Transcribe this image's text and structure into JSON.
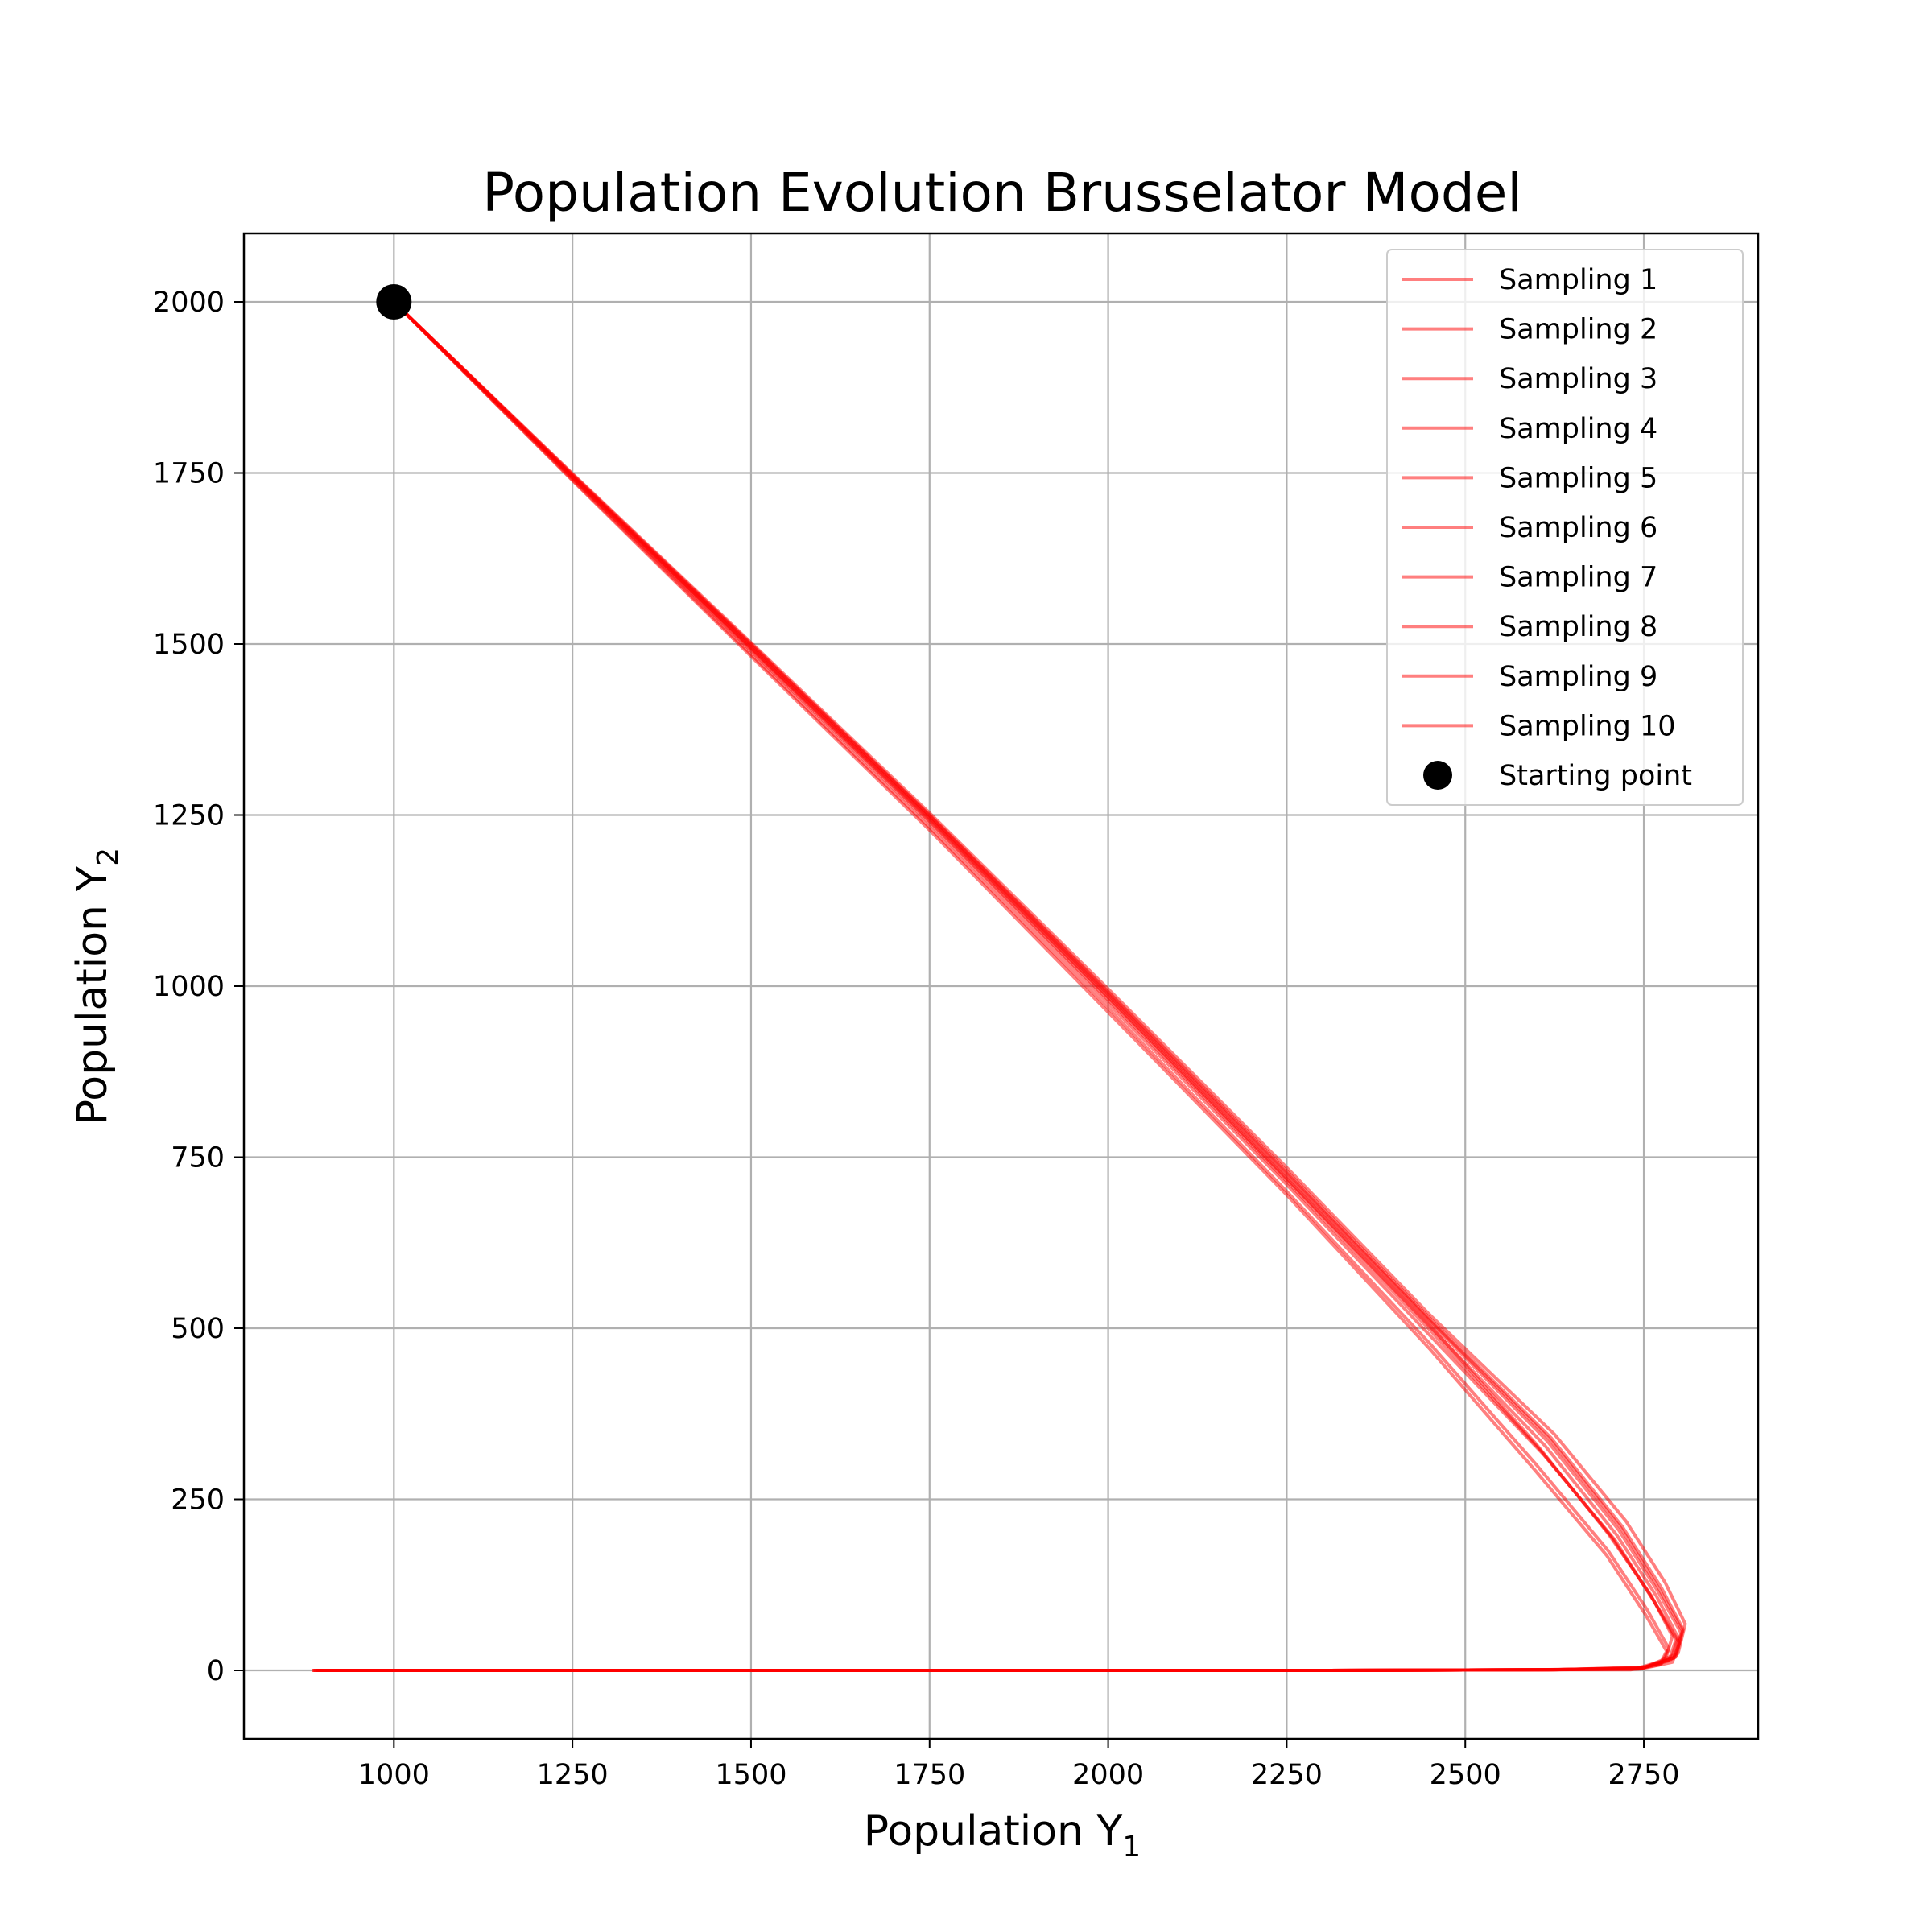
{
  "chart_data": {
    "type": "line",
    "title": "Population Evolution Brusselator Model",
    "xlabel": "Population Y",
    "xlabel_sub": "1",
    "ylabel": "Population Y",
    "ylabel_sub": "2",
    "xlim": [
      790,
      2910
    ],
    "ylim": [
      -100,
      2100
    ],
    "xticks": [
      1000,
      1250,
      1500,
      1750,
      2000,
      2250,
      2500,
      2750
    ],
    "yticks": [
      0,
      250,
      500,
      750,
      1000,
      1250,
      1500,
      1750,
      2000
    ],
    "grid": true,
    "legend_position": "upper right",
    "line_color": "#ff0000",
    "line_alpha": 0.5,
    "start_point": {
      "name": "Starting point",
      "x": 1000,
      "y": 2000,
      "color": "#000000"
    },
    "series": [
      {
        "name": "Sampling 1",
        "x": [
          1000,
          1250,
          1500,
          1750,
          2000,
          2250,
          2450,
          2600,
          2700,
          2760,
          2790,
          2780,
          2740,
          2600,
          2300,
          1900,
          1500,
          1100,
          885
        ],
        "y": [
          2000,
          1745,
          1495,
          1245,
          985,
          720,
          505,
          330,
          200,
          110,
          50,
          15,
          3,
          1,
          0,
          0,
          0,
          0,
          0
        ]
      },
      {
        "name": "Sampling 2",
        "x": [
          1000,
          1250,
          1500,
          1750,
          2000,
          2250,
          2450,
          2610,
          2710,
          2765,
          2800,
          2790,
          2745,
          2610,
          2300,
          1900,
          1500,
          1100,
          890
        ],
        "y": [
          2000,
          1742,
          1490,
          1238,
          975,
          710,
          490,
          315,
          190,
          100,
          40,
          12,
          2,
          1,
          0,
          0,
          0,
          0,
          0
        ]
      },
      {
        "name": "Sampling 3",
        "x": [
          1000,
          1250,
          1500,
          1750,
          2000,
          2250,
          2450,
          2620,
          2720,
          2775,
          2805,
          2795,
          2750,
          2620,
          2300,
          1900,
          1500,
          1100,
          895
        ],
        "y": [
          2000,
          1748,
          1500,
          1250,
          992,
          730,
          515,
          340,
          210,
          120,
          60,
          20,
          4,
          1,
          0,
          0,
          0,
          0,
          0
        ]
      },
      {
        "name": "Sampling 4",
        "x": [
          1000,
          1250,
          1500,
          1750,
          2000,
          2250,
          2450,
          2600,
          2700,
          2755,
          2785,
          2775,
          2735,
          2590,
          2300,
          1900,
          1500,
          1100,
          888
        ],
        "y": [
          2000,
          1740,
          1485,
          1232,
          968,
          700,
          478,
          300,
          175,
          88,
          32,
          10,
          2,
          1,
          0,
          0,
          0,
          0,
          0
        ]
      },
      {
        "name": "Sampling 5",
        "x": [
          1000,
          1250,
          1500,
          1750,
          2000,
          2250,
          2450,
          2615,
          2715,
          2770,
          2802,
          2792,
          2748,
          2615,
          2300,
          1900,
          1500,
          1100,
          892
        ],
        "y": [
          2000,
          1746,
          1497,
          1247,
          988,
          724,
          510,
          335,
          205,
          115,
          55,
          18,
          3,
          1,
          0,
          0,
          0,
          0,
          0
        ]
      },
      {
        "name": "Sampling 6",
        "x": [
          1000,
          1250,
          1500,
          1750,
          2000,
          2250,
          2450,
          2605,
          2705,
          2762,
          2795,
          2785,
          2742,
          2605,
          2300,
          1900,
          1500,
          1100,
          887
        ],
        "y": [
          2000,
          1743,
          1492,
          1241,
          980,
          715,
          498,
          322,
          195,
          105,
          45,
          14,
          2,
          1,
          0,
          0,
          0,
          0,
          0
        ]
      },
      {
        "name": "Sampling 7",
        "x": [
          1000,
          1250,
          1500,
          1750,
          2000,
          2250,
          2450,
          2625,
          2725,
          2780,
          2808,
          2798,
          2752,
          2625,
          2300,
          1900,
          1500,
          1100,
          898
        ],
        "y": [
          2000,
          1749,
          1502,
          1253,
          996,
          735,
          520,
          345,
          218,
          128,
          68,
          25,
          5,
          1,
          0,
          0,
          0,
          0,
          0
        ]
      },
      {
        "name": "Sampling 8",
        "x": [
          1000,
          1250,
          1500,
          1750,
          2000,
          2250,
          2450,
          2598,
          2698,
          2752,
          2782,
          2772,
          2732,
          2585,
          2300,
          1900,
          1500,
          1100,
          886
        ],
        "y": [
          2000,
          1739,
          1482,
          1228,
          962,
          695,
          470,
          292,
          168,
          82,
          28,
          8,
          1,
          1,
          0,
          0,
          0,
          0,
          0
        ]
      },
      {
        "name": "Sampling 9",
        "x": [
          1000,
          1250,
          1500,
          1750,
          2000,
          2250,
          2450,
          2612,
          2712,
          2768,
          2798,
          2788,
          2746,
          2612,
          2300,
          1900,
          1500,
          1100,
          891
        ],
        "y": [
          2000,
          1745,
          1494,
          1244,
          983,
          718,
          503,
          328,
          198,
          108,
          48,
          16,
          3,
          1,
          0,
          0,
          0,
          0,
          0
        ]
      },
      {
        "name": "Sampling 10",
        "x": [
          1000,
          1250,
          1500,
          1750,
          2000,
          2250,
          2450,
          2618,
          2718,
          2772,
          2804,
          2794,
          2749,
          2618,
          2300,
          1900,
          1500,
          1100,
          894
        ],
        "y": [
          2000,
          1747,
          1499,
          1249,
          990,
          727,
          512,
          338,
          208,
          118,
          58,
          19,
          4,
          1,
          0,
          0,
          0,
          0,
          0
        ]
      }
    ]
  }
}
